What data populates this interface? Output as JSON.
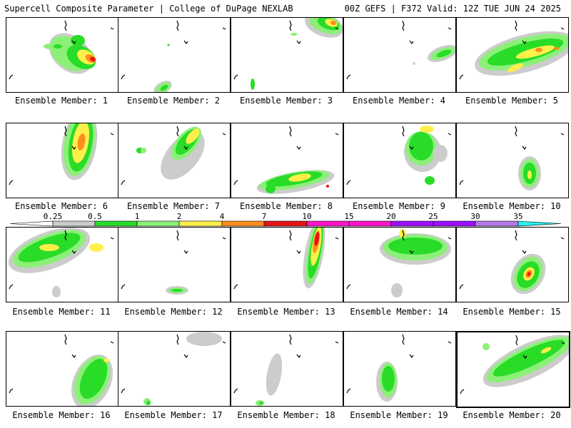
{
  "header": {
    "left": "Supercell Composite Parameter | College of DuPage NEXLAB",
    "right": "00Z GEFS | F372 Valid: 12Z TUE JUN 24 2025"
  },
  "colors": {
    "gray": "#cccccc",
    "lightgreen": "#8cf078",
    "green": "#28dc28",
    "yellow": "#ffef4a",
    "orange": "#ff8c1e",
    "red": "#e61414",
    "magenta": "#ff14c8",
    "purple": "#9b10ff",
    "lavender": "#b478e6",
    "cyan": "#28f0f0"
  },
  "legend": {
    "ticks": [
      "0.25",
      "0.5",
      "1",
      "2",
      "4",
      "7",
      "10",
      "15",
      "20",
      "25",
      "30",
      "35"
    ]
  },
  "members": [
    {
      "label": "Ensemble Member: 1"
    },
    {
      "label": "Ensemble Member: 2"
    },
    {
      "label": "Ensemble Member: 3"
    },
    {
      "label": "Ensemble Member: 4"
    },
    {
      "label": "Ensemble Member: 5"
    },
    {
      "label": "Ensemble Member: 6"
    },
    {
      "label": "Ensemble Member: 7"
    },
    {
      "label": "Ensemble Member: 8"
    },
    {
      "label": "Ensemble Member: 9"
    },
    {
      "label": "Ensemble Member: 10"
    },
    {
      "label": "Ensemble Member: 11"
    },
    {
      "label": "Ensemble Member: 12"
    },
    {
      "label": "Ensemble Member: 13"
    },
    {
      "label": "Ensemble Member: 14"
    },
    {
      "label": "Ensemble Member: 15"
    },
    {
      "label": "Ensemble Member: 16"
    },
    {
      "label": "Ensemble Member: 17"
    },
    {
      "label": "Ensemble Member: 18"
    },
    {
      "label": "Ensemble Member: 19"
    },
    {
      "label": "Ensemble Member: 20"
    }
  ]
}
